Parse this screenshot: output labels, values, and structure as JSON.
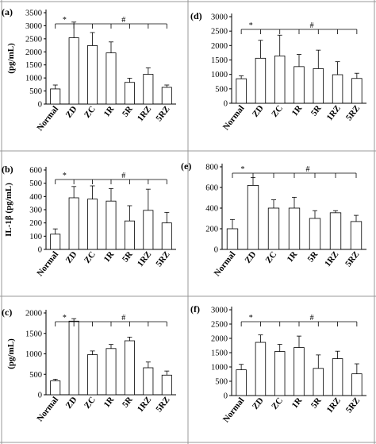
{
  "categories": [
    "Normal",
    "ZD",
    "ZC",
    "1R",
    "5R",
    "1RZ",
    "5RZ"
  ],
  "chart_data": [
    {
      "panel": "(a)",
      "type": "bar",
      "ylabel": "(pg/mL)",
      "ylim": [
        0,
        3500
      ],
      "yticks": [
        0,
        500,
        1000,
        1500,
        2000,
        2500,
        3000,
        3500
      ],
      "categories": [
        "Normal",
        "ZD",
        "ZC",
        "1R",
        "5R",
        "1RZ",
        "5RZ"
      ],
      "values": [
        580,
        2540,
        2240,
        1960,
        830,
        1140,
        640
      ],
      "errors": [
        150,
        600,
        500,
        420,
        160,
        250,
        90
      ],
      "annotations": [
        "*",
        "#"
      ]
    },
    {
      "panel": "(b)",
      "type": "bar",
      "ylabel": "IL-1β (pg/mL)",
      "ylim": [
        0,
        600
      ],
      "yticks": [
        0,
        100,
        200,
        300,
        400,
        500,
        600
      ],
      "categories": [
        "Normal",
        "ZD",
        "ZC",
        "1R",
        "5R",
        "1RZ",
        "5RZ"
      ],
      "values": [
        115,
        390,
        380,
        365,
        215,
        295,
        200
      ],
      "errors": [
        40,
        85,
        100,
        95,
        115,
        160,
        80
      ],
      "annotations": [
        "*",
        "#"
      ]
    },
    {
      "panel": "(c)",
      "type": "bar",
      "ylabel": "(pg/mL)",
      "ylim": [
        0,
        2000
      ],
      "yticks": [
        0,
        500,
        1000,
        1500,
        2000
      ],
      "categories": [
        "Normal",
        "ZD",
        "ZC",
        "1R",
        "5R",
        "1RZ",
        "5RZ"
      ],
      "values": [
        340,
        1800,
        980,
        1130,
        1320,
        660,
        480
      ],
      "errors": [
        40,
        60,
        90,
        100,
        90,
        140,
        100
      ],
      "annotations": [
        "*",
        "#"
      ]
    },
    {
      "panel": "(d)",
      "type": "bar",
      "ylabel": "",
      "ylim": [
        0,
        3000
      ],
      "yticks": [
        0,
        500,
        1000,
        1500,
        2000,
        2500,
        3000
      ],
      "categories": [
        "Normal",
        "ZD",
        "ZC",
        "1R",
        "5R",
        "1RZ",
        "5RZ"
      ],
      "values": [
        850,
        1560,
        1640,
        1270,
        1200,
        990,
        860
      ],
      "errors": [
        100,
        620,
        720,
        420,
        640,
        450,
        180
      ],
      "annotations": [
        "*",
        "#"
      ]
    },
    {
      "panel": "(e)",
      "type": "bar",
      "ylabel": "",
      "ylim": [
        0,
        800
      ],
      "yticks": [
        0,
        200,
        400,
        600,
        800
      ],
      "categories": [
        "Normal",
        "ZD",
        "ZC",
        "1R",
        "5R",
        "1RZ",
        "5RZ"
      ],
      "values": [
        200,
        620,
        400,
        400,
        300,
        355,
        270
      ],
      "errors": [
        90,
        75,
        80,
        105,
        75,
        20,
        60
      ],
      "annotations": [
        "*",
        "#"
      ]
    },
    {
      "panel": "(f)",
      "type": "bar",
      "ylabel": "",
      "ylim": [
        0,
        3000
      ],
      "yticks": [
        0,
        500,
        1000,
        1500,
        2000,
        2500,
        3000
      ],
      "categories": [
        "Normal",
        "ZD",
        "ZC",
        "1R",
        "5R",
        "1RZ",
        "5RZ"
      ],
      "values": [
        900,
        1860,
        1540,
        1680,
        950,
        1290,
        760
      ],
      "errors": [
        190,
        260,
        250,
        400,
        470,
        260,
        350
      ],
      "annotations": [
        "*",
        "#"
      ]
    }
  ]
}
